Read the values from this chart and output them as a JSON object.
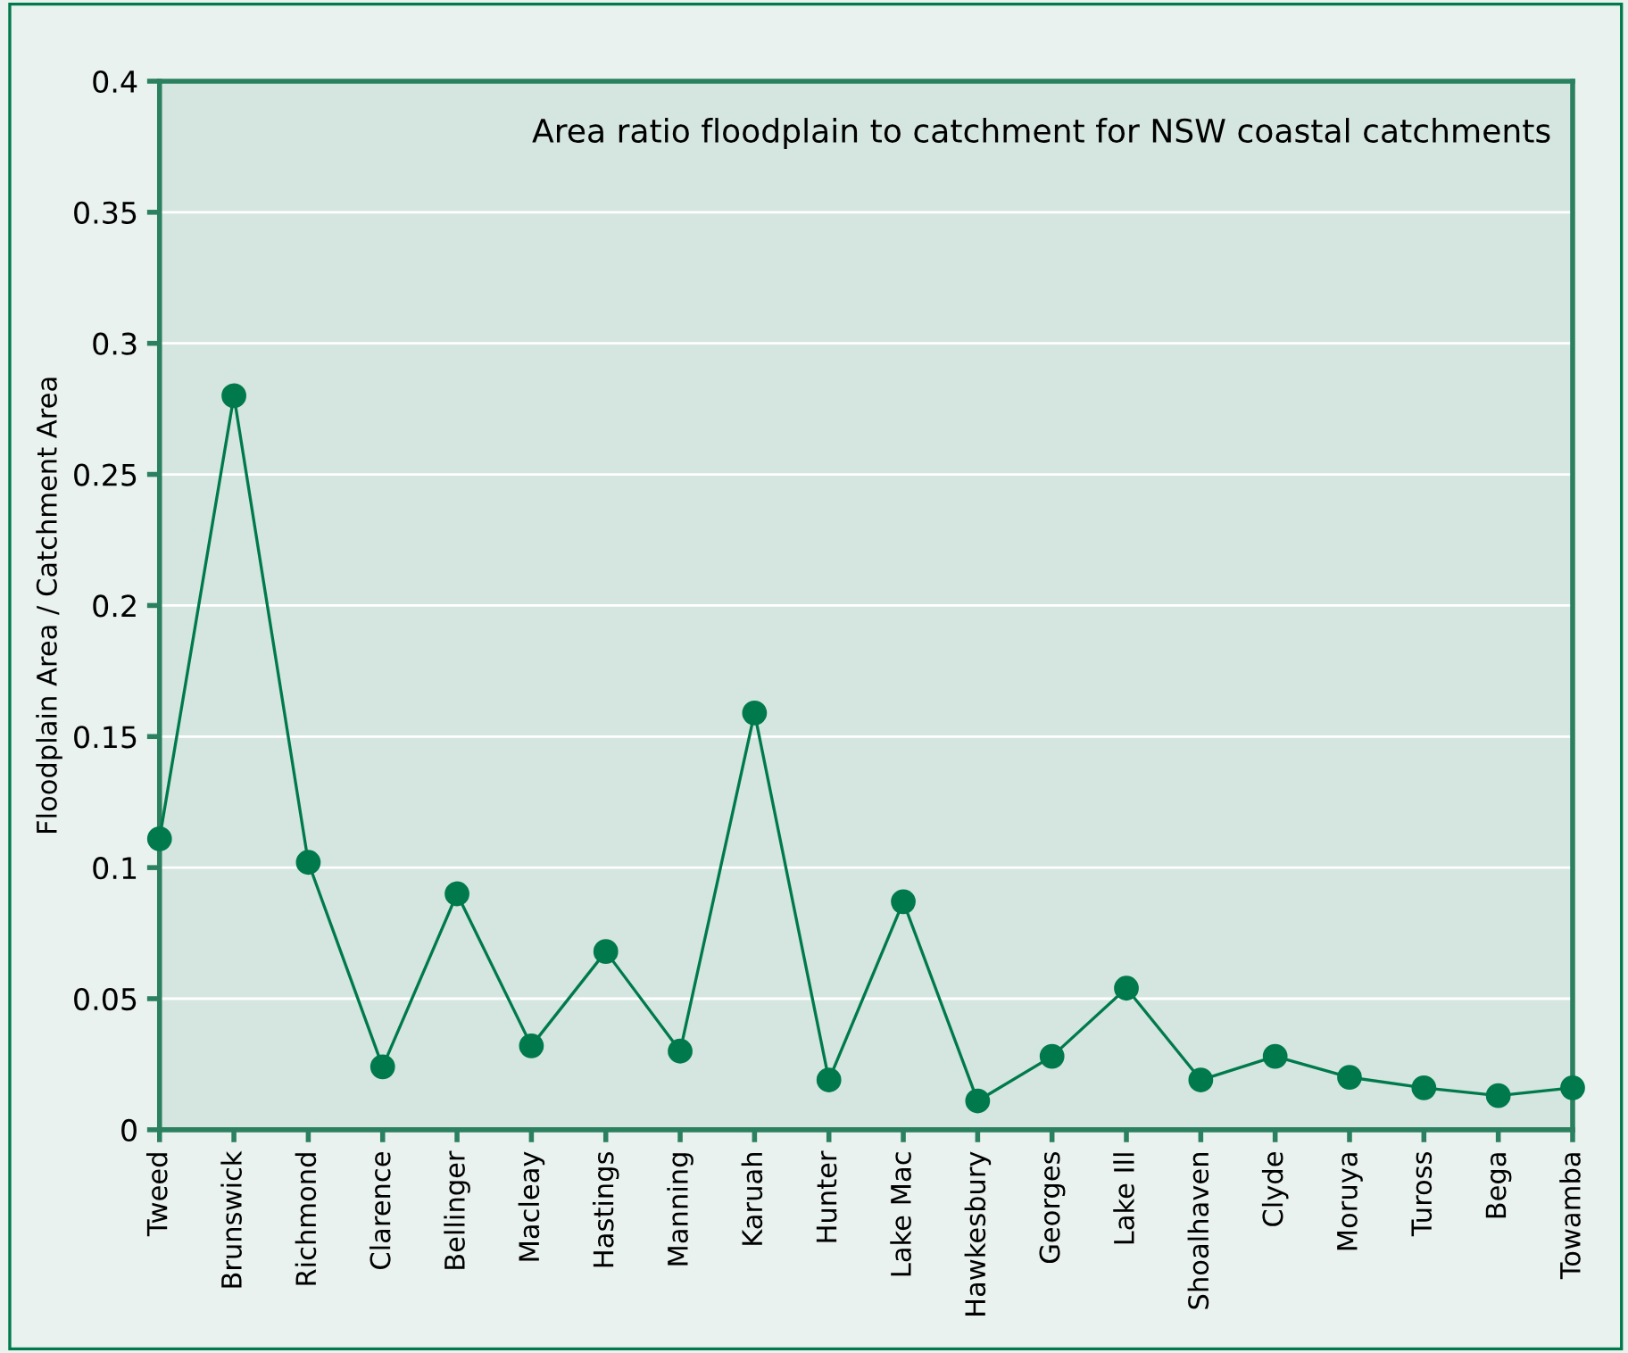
{
  "chart_data": {
    "type": "line",
    "title": "Area ratio floodplain to catchment for NSW coastal catchments",
    "ylabel": "Floodplain Area / Catchment Area",
    "categories": [
      "Tweed",
      "Brunswick",
      "Richmond",
      "Clarence",
      "Bellinger",
      "Macleay",
      "Hastings",
      "Manning",
      "Karuah",
      "Hunter",
      "Lake Mac",
      "Hawkesbury",
      "Georges",
      "Lake Ill",
      "Shoalhaven",
      "Clyde",
      "Moruya",
      "Tuross",
      "Bega",
      "Towamba"
    ],
    "series": [
      {
        "color": "#007a4d",
        "values": [
          0.111,
          0.28,
          0.102,
          0.024,
          0.09,
          0.032,
          0.068,
          0.03,
          0.159,
          0.019,
          0.087,
          0.011,
          0.028,
          0.054,
          0.019,
          0.028,
          0.02,
          0.016,
          0.013,
          0.016
        ]
      }
    ],
    "ylim": [
      0,
      0.4
    ],
    "yticks": [
      0,
      0.05,
      0.1,
      0.15,
      0.2,
      0.25,
      0.3,
      0.35,
      0.4
    ],
    "grid": "y",
    "marker": "circle",
    "line_style": "solid"
  }
}
